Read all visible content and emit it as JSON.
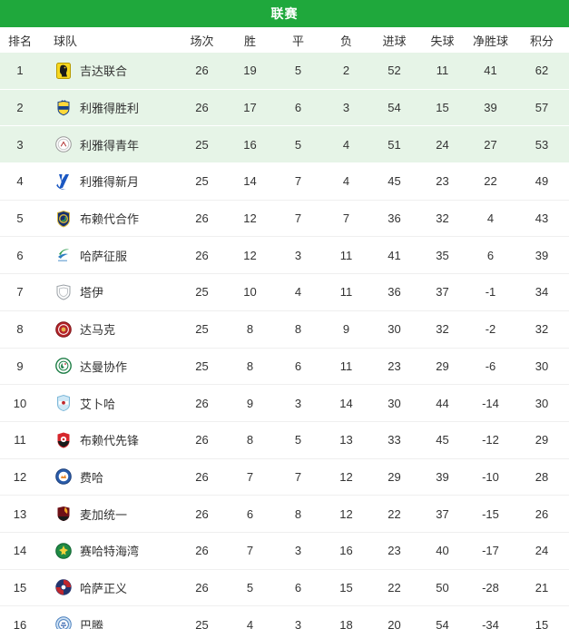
{
  "header": {
    "title": "联赛"
  },
  "columns": [
    "排名",
    "球队",
    "场次",
    "胜",
    "平",
    "负",
    "进球",
    "失球",
    "净胜球",
    "积分"
  ],
  "colors": {
    "accent_green": "#1fa83c",
    "highlight_row_green": "#e6f4e7",
    "row_border": "#efefef",
    "text": "#333333",
    "title_text": "#ffffff"
  },
  "rows": [
    {
      "rank": 1,
      "team": "吉达联合",
      "logo": "al-ittihad-badge",
      "played": 26,
      "win": 19,
      "draw": 5,
      "loss": 2,
      "goals_for": 52,
      "goals_against": 11,
      "goal_diff": 41,
      "points": 62,
      "highlight": true
    },
    {
      "rank": 2,
      "team": "利雅得胜利",
      "logo": "al-nassr-badge",
      "played": 26,
      "win": 17,
      "draw": 6,
      "loss": 3,
      "goals_for": 54,
      "goals_against": 15,
      "goal_diff": 39,
      "points": 57,
      "highlight": true
    },
    {
      "rank": 3,
      "team": "利雅得青年",
      "logo": "al-shabab-badge",
      "played": 25,
      "win": 16,
      "draw": 5,
      "loss": 4,
      "goals_for": 51,
      "goals_against": 24,
      "goal_diff": 27,
      "points": 53,
      "highlight": true
    },
    {
      "rank": 4,
      "team": "利雅得新月",
      "logo": "al-hilal-badge",
      "played": 25,
      "win": 14,
      "draw": 7,
      "loss": 4,
      "goals_for": 45,
      "goals_against": 23,
      "goal_diff": 22,
      "points": 49,
      "highlight": false
    },
    {
      "rank": 5,
      "team": "布赖代合作",
      "logo": "al-taawoun-badge",
      "played": 26,
      "win": 12,
      "draw": 7,
      "loss": 7,
      "goals_for": 36,
      "goals_against": 32,
      "goal_diff": 4,
      "points": 43,
      "highlight": false
    },
    {
      "rank": 6,
      "team": "哈萨征服",
      "logo": "al-fateh-badge",
      "played": 26,
      "win": 12,
      "draw": 3,
      "loss": 11,
      "goals_for": 41,
      "goals_against": 35,
      "goal_diff": 6,
      "points": 39,
      "highlight": false
    },
    {
      "rank": 7,
      "team": "塔伊",
      "logo": "al-tai-badge",
      "played": 25,
      "win": 10,
      "draw": 4,
      "loss": 11,
      "goals_for": 36,
      "goals_against": 37,
      "goal_diff": -1,
      "points": 34,
      "highlight": false
    },
    {
      "rank": 8,
      "team": "达马克",
      "logo": "damac-badge",
      "played": 25,
      "win": 8,
      "draw": 8,
      "loss": 9,
      "goals_for": 30,
      "goals_against": 32,
      "goal_diff": -2,
      "points": 32,
      "highlight": false
    },
    {
      "rank": 9,
      "team": "达曼协作",
      "logo": "al-ettifaq-badge",
      "played": 25,
      "win": 8,
      "draw": 6,
      "loss": 11,
      "goals_for": 23,
      "goals_against": 29,
      "goal_diff": -6,
      "points": 30,
      "highlight": false
    },
    {
      "rank": 10,
      "team": "艾卜哈",
      "logo": "abha-badge",
      "played": 26,
      "win": 9,
      "draw": 3,
      "loss": 14,
      "goals_for": 30,
      "goals_against": 44,
      "goal_diff": -14,
      "points": 30,
      "highlight": false
    },
    {
      "rank": 11,
      "team": "布赖代先锋",
      "logo": "al-raed-badge",
      "played": 26,
      "win": 8,
      "draw": 5,
      "loss": 13,
      "goals_for": 33,
      "goals_against": 45,
      "goal_diff": -12,
      "points": 29,
      "highlight": false
    },
    {
      "rank": 12,
      "team": "费哈",
      "logo": "al-fayha-badge",
      "played": 26,
      "win": 7,
      "draw": 7,
      "loss": 12,
      "goals_for": 29,
      "goals_against": 39,
      "goal_diff": -10,
      "points": 28,
      "highlight": false
    },
    {
      "rank": 13,
      "team": "麦加统一",
      "logo": "al-wehda-badge",
      "played": 26,
      "win": 6,
      "draw": 8,
      "loss": 12,
      "goals_for": 22,
      "goals_against": 37,
      "goal_diff": -15,
      "points": 26,
      "highlight": false
    },
    {
      "rank": 14,
      "team": "赛哈特海湾",
      "logo": "al-khaleej-badge",
      "played": 26,
      "win": 7,
      "draw": 3,
      "loss": 16,
      "goals_for": 23,
      "goals_against": 40,
      "goal_diff": -17,
      "points": 24,
      "highlight": false
    },
    {
      "rank": 15,
      "team": "哈萨正义",
      "logo": "al-adalah-badge",
      "played": 26,
      "win": 5,
      "draw": 6,
      "loss": 15,
      "goals_for": 22,
      "goals_against": 50,
      "goal_diff": -28,
      "points": 21,
      "highlight": false
    },
    {
      "rank": 16,
      "team": "巴腾",
      "logo": "al-batin-badge",
      "played": 25,
      "win": 4,
      "draw": 3,
      "loss": 18,
      "goals_for": 20,
      "goals_against": 54,
      "goal_diff": -34,
      "points": 15,
      "highlight": false
    }
  ]
}
